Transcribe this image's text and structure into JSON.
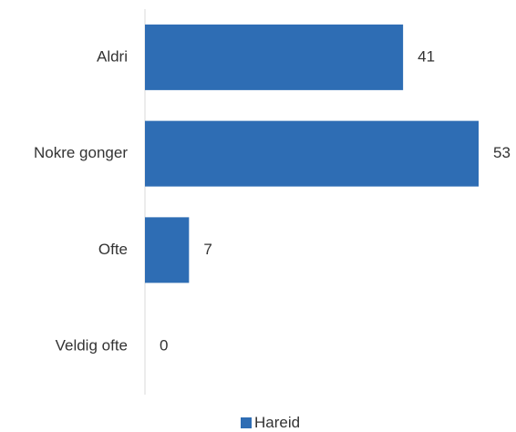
{
  "chart_data": {
    "type": "bar",
    "orientation": "horizontal",
    "categories": [
      "Aldri",
      "Nokre gonger",
      "Ofte",
      "Veldig ofte"
    ],
    "series": [
      {
        "name": "Hareid",
        "values": [
          41,
          53,
          7,
          0
        ],
        "color": "#2e6db4"
      }
    ],
    "data_labels": [
      "41",
      "53",
      "7",
      "0"
    ],
    "xlim": [
      0,
      60
    ],
    "grid": false,
    "legend_position": "bottom"
  },
  "legend": {
    "label": "Hareid",
    "color": "#2e6db4"
  },
  "colors": {
    "bar": "#2e6db4",
    "axis": "#d9d9d9",
    "text": "#333333"
  }
}
